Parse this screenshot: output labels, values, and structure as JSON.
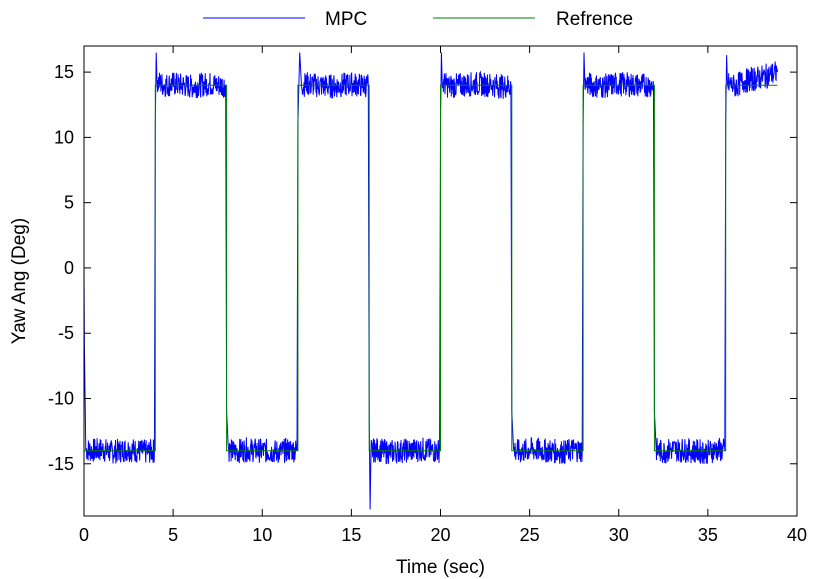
{
  "chart_data": {
    "type": "line",
    "xlabel": "Time (sec)",
    "ylabel": "Yaw Ang (Deg)",
    "xlim": [
      0,
      40
    ],
    "ylim": [
      -19,
      17
    ],
    "xticks": [
      "0",
      "5",
      "10",
      "15",
      "20",
      "25",
      "30",
      "35",
      "40"
    ],
    "yticks": [
      "15",
      "10",
      "5",
      "0",
      "-5",
      "-10",
      "-15"
    ],
    "grid": false,
    "legend_position": "top",
    "series": [
      {
        "name": "MPC",
        "color": "#0000ff",
        "x": [
          0,
          0.02,
          0.1,
          0.5,
          1,
          1.5,
          2,
          2.5,
          3,
          3.5,
          3.95,
          4.0,
          4.05,
          4.1,
          4.2,
          4.5,
          5,
          6,
          7,
          7.5,
          7.95,
          8.0,
          8.1,
          8.2,
          8.5,
          9,
          10,
          11,
          11.5,
          11.95,
          12.0,
          12.1,
          12.2,
          12.5,
          13,
          14,
          15,
          15.5,
          15.95,
          16.0,
          16.05,
          16.1,
          16.2,
          16.5,
          17,
          18,
          19,
          19.5,
          19.95,
          20.0,
          20.05,
          20.1,
          20.2,
          20.5,
          21,
          22,
          23,
          23.5,
          23.95,
          24.0,
          24.1,
          24.2,
          24.5,
          25,
          26,
          27,
          27.5,
          27.95,
          28.0,
          28.05,
          28.1,
          28.2,
          28.5,
          29,
          30,
          31,
          31.5,
          31.95,
          32.0,
          32.1,
          32.2,
          32.5,
          33,
          34,
          35,
          35.5,
          35.95,
          36.0,
          36.05,
          36.1,
          36.2,
          36.5,
          37,
          38,
          38.5,
          38.9
        ],
        "y": [
          0,
          -6,
          -13.9,
          -14,
          -13.9,
          -14.1,
          -14,
          -13.9,
          -14,
          -14.1,
          -14,
          11,
          16.5,
          14,
          14.2,
          14,
          14.1,
          13.9,
          14.1,
          14,
          14,
          -11,
          -13.9,
          -14,
          -14.1,
          -13.9,
          -14,
          -14.1,
          -13.9,
          -14,
          11,
          16.5,
          14,
          14.1,
          14,
          13.9,
          14.1,
          14,
          14,
          -11.3,
          -18.5,
          -13.9,
          -14,
          -13.9,
          -14.1,
          -14,
          -13.9,
          -14,
          -14,
          11,
          16.5,
          14,
          14.1,
          13.9,
          14,
          14.1,
          14,
          13.9,
          14,
          -11,
          -13.9,
          -14,
          -14.1,
          -13.9,
          -14,
          -14.1,
          -13.9,
          -14,
          11,
          16.5,
          14,
          14.1,
          14,
          13.9,
          14.1,
          14,
          14,
          14,
          -11,
          -13.9,
          -14,
          -14.1,
          -13.9,
          -14,
          -14.1,
          -13.9,
          -14,
          11,
          16.3,
          14,
          14.1,
          13.9,
          14.3,
          14.6,
          14.8,
          15
        ]
      },
      {
        "name": "Refrence",
        "color": "#008000",
        "x": [
          0,
          4,
          4,
          8,
          8,
          12,
          12,
          16,
          16,
          20,
          20,
          24,
          24,
          28,
          28,
          32,
          32,
          36,
          36,
          38.9
        ],
        "y": [
          -14,
          -14,
          14,
          14,
          -14,
          -14,
          14,
          14,
          -14,
          -14,
          14,
          14,
          -14,
          -14,
          14,
          14,
          -14,
          -14,
          14,
          14
        ]
      }
    ]
  }
}
